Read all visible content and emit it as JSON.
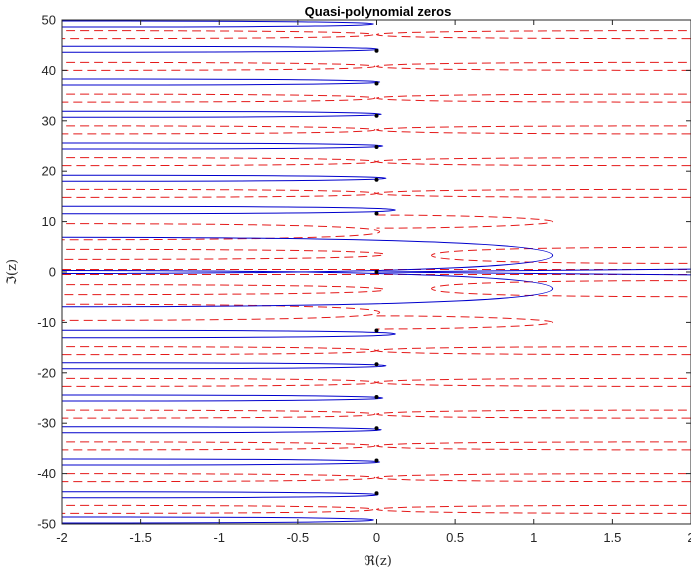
{
  "chart_data": {
    "type": "line",
    "title": "Quasi-polynomial zeros",
    "xlabel": "ℜ(z)",
    "ylabel": "ℑ(z)",
    "xlim": [
      -2,
      2
    ],
    "ylim": [
      -50,
      50
    ],
    "x_ticks": [
      -2,
      -1.5,
      -1,
      -0.5,
      0,
      0.5,
      1,
      1.5,
      2
    ],
    "x_tick_labels": [
      "-2",
      "-1.5",
      "-1",
      "-0.5",
      "0",
      "0.5",
      "1",
      "1.5",
      "2"
    ],
    "y_ticks": [
      -50,
      -40,
      -30,
      -20,
      -10,
      0,
      10,
      20,
      30,
      40,
      50
    ],
    "y_tick_labels": [
      "-50",
      "-40",
      "-30",
      "-20",
      "-10",
      "0",
      "10",
      "20",
      "30",
      "40",
      "50"
    ],
    "grid": false,
    "box": true,
    "colors": {
      "real_part_zero_contour": "#0000cc",
      "imag_part_zero_contour": "#e41a1a",
      "zeros": "#000000",
      "axes": "#262626"
    },
    "series": [
      {
        "style": "solid",
        "color": "#0000cc",
        "lobes": [
          {
            "y": 49.2,
            "tip_x": -0.02,
            "half_width": 0.6
          },
          {
            "y": 44.2,
            "tip_x": 0.01,
            "half_width": 0.6
          },
          {
            "y": 37.7,
            "tip_x": 0.02,
            "half_width": 0.6
          },
          {
            "y": 31.3,
            "tip_x": 0.03,
            "half_width": 0.6
          },
          {
            "y": 25.0,
            "tip_x": 0.04,
            "half_width": 0.6
          },
          {
            "y": 18.6,
            "tip_x": 0.06,
            "half_width": 0.6
          },
          {
            "y": 12.3,
            "tip_x": 0.12,
            "half_width": 0.75
          },
          {
            "y": 3.3,
            "tip_x": 1.12,
            "half_width": 3.6
          },
          {
            "y": -3.3,
            "tip_x": 1.12,
            "half_width": 3.6
          },
          {
            "y": -12.3,
            "tip_x": 0.12,
            "half_width": 0.75
          },
          {
            "y": -18.6,
            "tip_x": 0.06,
            "half_width": 0.6
          },
          {
            "y": -25.0,
            "tip_x": 0.04,
            "half_width": 0.6
          },
          {
            "y": -31.3,
            "tip_x": 0.03,
            "half_width": 0.6
          },
          {
            "y": -37.7,
            "tip_x": 0.02,
            "half_width": 0.6
          },
          {
            "y": -44.2,
            "tip_x": 0.01,
            "half_width": 0.6
          },
          {
            "y": -49.2,
            "tip_x": -0.02,
            "half_width": 0.6
          }
        ]
      },
      {
        "style": "dashed",
        "color": "#e41a1a",
        "left_lobes": [
          {
            "y": 47.1,
            "tip_x": -0.02,
            "half_width": 0.8
          },
          {
            "y": 40.8,
            "tip_x": -0.01,
            "half_width": 0.8
          },
          {
            "y": 34.5,
            "tip_x": -0.01,
            "half_width": 0.8
          },
          {
            "y": 28.2,
            "tip_x": -0.01,
            "half_width": 0.8
          },
          {
            "y": 21.9,
            "tip_x": 0.0,
            "half_width": 0.8
          },
          {
            "y": 15.6,
            "tip_x": 0.0,
            "half_width": 0.8
          },
          {
            "y": 8.0,
            "tip_x": 0.02,
            "half_width": 1.6
          },
          {
            "y": 3.5,
            "tip_x": 0.05,
            "half_width": 1.0
          },
          {
            "y": -3.5,
            "tip_x": 0.05,
            "half_width": 1.0
          },
          {
            "y": -8.0,
            "tip_x": 0.02,
            "half_width": 1.6
          },
          {
            "y": -15.6,
            "tip_x": 0.0,
            "half_width": 0.8
          },
          {
            "y": -21.9,
            "tip_x": 0.0,
            "half_width": 0.8
          },
          {
            "y": -28.2,
            "tip_x": -0.01,
            "half_width": 0.8
          },
          {
            "y": -34.5,
            "tip_x": -0.01,
            "half_width": 0.8
          },
          {
            "y": -40.8,
            "tip_x": -0.01,
            "half_width": 0.8
          },
          {
            "y": -47.1,
            "tip_x": -0.02,
            "half_width": 0.8
          }
        ],
        "right_lobes": [
          {
            "y": 47.1,
            "tip_x": 0.0,
            "half_width": 0.8
          },
          {
            "y": 40.8,
            "tip_x": 0.0,
            "half_width": 0.8
          },
          {
            "y": 34.5,
            "tip_x": 0.0,
            "half_width": 0.8
          },
          {
            "y": 28.2,
            "tip_x": 0.0,
            "half_width": 0.8
          },
          {
            "y": 21.9,
            "tip_x": 0.0,
            "half_width": 0.8
          },
          {
            "y": 15.6,
            "tip_x": 0.0,
            "half_width": 0.8
          },
          {
            "y": 10.0,
            "tip_x": 0.0,
            "apex_x": 1.12,
            "half_width": 1.3
          },
          {
            "y": 3.3,
            "tip_x": 0.35,
            "half_width": 1.6
          },
          {
            "y": -3.3,
            "tip_x": 0.35,
            "half_width": 1.6
          },
          {
            "y": -10.0,
            "tip_x": 0.0,
            "apex_x": 1.12,
            "half_width": 1.3
          },
          {
            "y": -15.6,
            "tip_x": 0.0,
            "half_width": 0.8
          },
          {
            "y": -21.9,
            "tip_x": 0.0,
            "half_width": 0.8
          },
          {
            "y": -28.2,
            "tip_x": 0.0,
            "half_width": 0.8
          },
          {
            "y": -34.5,
            "tip_x": 0.0,
            "half_width": 0.8
          },
          {
            "y": -40.8,
            "tip_x": 0.0,
            "half_width": 0.8
          },
          {
            "y": -47.1,
            "tip_x": 0.0,
            "half_width": 0.8
          }
        ],
        "axis_segments": [
          {
            "y": 0.5,
            "x": [
              -2,
              2
            ]
          },
          {
            "y": -0.5,
            "x": [
              -2,
              2
            ]
          }
        ]
      },
      {
        "style": "markers",
        "color": "#000000",
        "points": [
          {
            "x": 0,
            "y": 43.9
          },
          {
            "x": 0,
            "y": 37.4
          },
          {
            "x": 0,
            "y": 31.0
          },
          {
            "x": 0,
            "y": 24.8
          },
          {
            "x": 0,
            "y": 18.3
          },
          {
            "x": 0,
            "y": 11.6
          },
          {
            "x": 0,
            "y": 0
          },
          {
            "x": 0,
            "y": -11.6
          },
          {
            "x": 0,
            "y": -18.3
          },
          {
            "x": 0,
            "y": -24.8
          },
          {
            "x": 0,
            "y": -31.0
          },
          {
            "x": 0,
            "y": -37.4
          },
          {
            "x": 0,
            "y": -43.9
          }
        ]
      }
    ]
  }
}
